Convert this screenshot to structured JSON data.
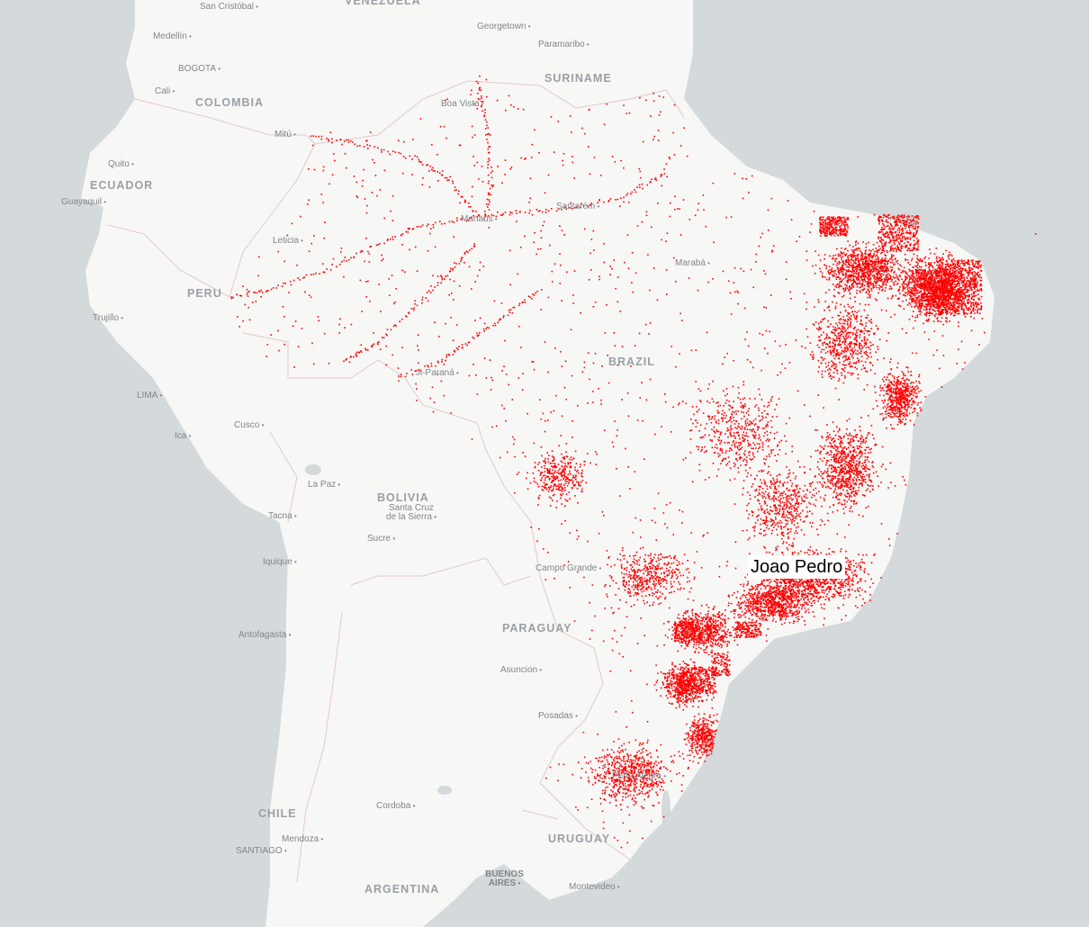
{
  "map": {
    "basemap_colors": {
      "ocean": "#d4d9dc",
      "land": "#f7f7f6",
      "border": "#e3c9c9",
      "dot": "#ff0000"
    },
    "country_labels": [
      "VENEZUELA",
      "SURINAME",
      "COLOMBIA",
      "ECUADOR",
      "PERU",
      "BRAZIL",
      "BOLIVIA",
      "PARAGUAY",
      "CHILE",
      "URUGUAY",
      "ARGENTINA"
    ],
    "city_labels": [
      "San Cristóbal",
      "Medellín",
      "BOGOTA",
      "Cali",
      "Georgetown",
      "Paramaribo",
      "Boa Vista",
      "Mitú",
      "Quito",
      "Guayaquil",
      "Leticia",
      "Santarém",
      "Manaus",
      "Marabá",
      "Trujillo",
      "LIMA",
      "Cusco",
      "Ica",
      "Ji-Paraná",
      "La Paz",
      "Santa Cruz de la Sierra",
      "Sucre",
      "Tacna",
      "Iquique",
      "Antofagasta",
      "Campo Grande",
      "Asuncion",
      "Posadas",
      "Porto Alegre",
      "Cordoba",
      "Mendoza",
      "SANTIAGO",
      "BUENOS AIRES",
      "Montevideo"
    ],
    "callout": "Joao Pedro"
  }
}
